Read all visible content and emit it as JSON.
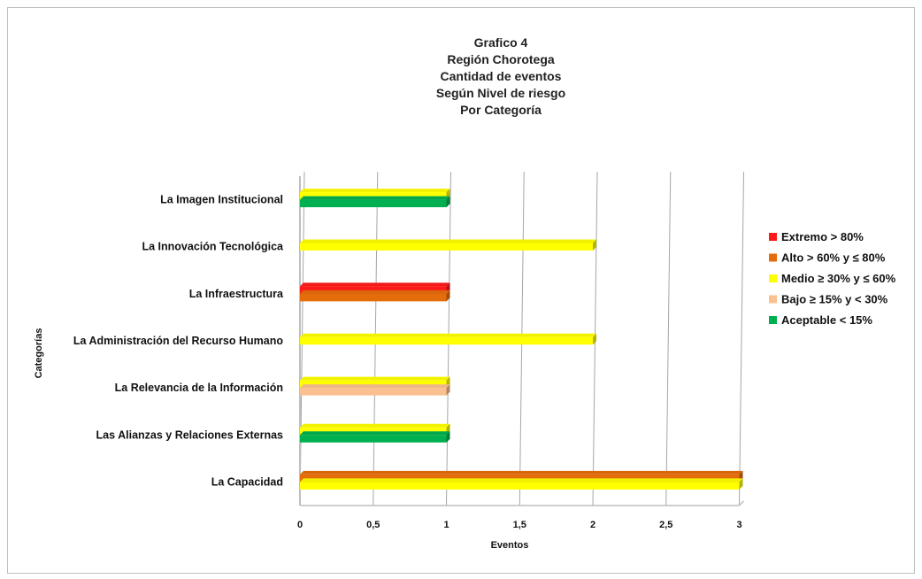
{
  "chart_data": {
    "type": "bar",
    "orientation": "horizontal",
    "title_lines": [
      "Grafico  4",
      "Región Chorotega",
      "Cantidad de eventos",
      "Según Nivel de riesgo",
      "Por Categoría"
    ],
    "xlabel": "Eventos",
    "ylabel": "Categorías",
    "xlim": [
      0,
      3
    ],
    "x_ticks": [
      "0",
      "0,5",
      "1",
      "1,5",
      "2",
      "2,5",
      "3"
    ],
    "x_tick_values": [
      0,
      0.5,
      1,
      1.5,
      2,
      2.5,
      3
    ],
    "grid": "vertical",
    "legend_position": "right",
    "categories": [
      "La Imagen Institucional",
      "La Innovación Tecnológica",
      "La Infraestructura",
      "La Administración del Recurso Humano",
      "La Relevancia de la Información",
      "Las Alianzas y Relaciones Externas",
      "La Capacidad"
    ],
    "series": [
      {
        "name": "Extremo > 80%",
        "color": "#ff1a1a",
        "values": [
          0,
          0,
          1,
          0,
          0,
          0,
          0
        ]
      },
      {
        "name": "Alto > 60% y  ≤ 80%",
        "color": "#e46c0a",
        "values": [
          0,
          0,
          1,
          0,
          0,
          0,
          3
        ]
      },
      {
        "name": "Medio ≥ 30% y ≤ 60%",
        "color": "#ffff00",
        "values": [
          1,
          2,
          0,
          2,
          1,
          1,
          3
        ]
      },
      {
        "name": "Bajo ≥ 15% y < 30%",
        "color": "#fac090",
        "values": [
          0,
          0,
          0,
          0,
          1,
          0,
          0
        ]
      },
      {
        "name": "Aceptable < 15%",
        "color": "#00b050",
        "values": [
          1,
          0,
          0,
          0,
          0,
          1,
          0
        ]
      }
    ]
  }
}
